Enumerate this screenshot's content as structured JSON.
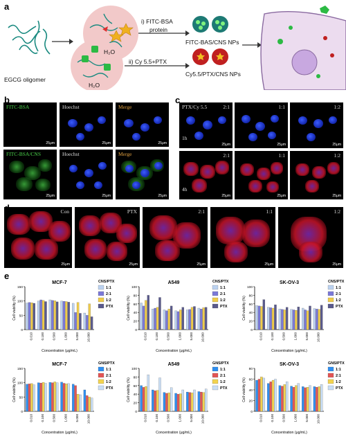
{
  "panels": {
    "a": "a",
    "b": "b",
    "c": "c",
    "d": "d",
    "e": "e"
  },
  "schematic": {
    "egcg": "EGCG oligomer",
    "water1": "H₂O",
    "water2": "H₂O",
    "route1": "i)  FITC-BSA",
    "route1b": "protein",
    "route2": "ii) Cy 5.5+PTX",
    "np1": "FITC-BAS/CNS NPs",
    "np2": "Cy5.5/PTX/CNS NPs"
  },
  "panel_b": {
    "row1": [
      "FITC-BSA",
      "Hoechst",
      "Merge"
    ],
    "row2": [
      "FITC-BSA/CNS",
      "Hoechst",
      "Merge"
    ],
    "scale": "25μm"
  },
  "panel_c": {
    "legend": "PTX/Cy 5.5",
    "cols": [
      "2:1",
      "1:1",
      "1:2"
    ],
    "times": [
      "1h",
      "4h"
    ],
    "scale": "25μm"
  },
  "panel_d": {
    "labels": [
      "Con",
      "PTX",
      "2:1",
      "1:1",
      "1:2"
    ],
    "scale": "25μm"
  },
  "colors": {
    "c1": "#bcd2f0",
    "c2": "#7b79d8",
    "c3": "#f0cc4a",
    "c4": "#5a5a8c",
    "g1": "#2f8ff0",
    "g2": "#e25555",
    "g3": "#f2d34f",
    "g4": "#c9def5"
  },
  "chart_data": [
    {
      "type": "bar",
      "title": "MCF-7",
      "legend_title": "CNS/PTX",
      "xlabel": "Concentration (μg/mL)",
      "ylabel": "Cell viability (%)",
      "ylim": [
        0,
        150
      ],
      "yticks": [
        "0",
        "50",
        "100",
        "150"
      ],
      "categories": [
        "0.010",
        "0.100",
        "0.500",
        "1.000",
        "5.000",
        "10.000"
      ],
      "series": [
        {
          "name": "1:1",
          "values": [
            93,
            100,
            104,
            100,
            92,
            58
          ]
        },
        {
          "name": "2:1",
          "values": [
            95,
            104,
            102,
            99,
            60,
            50
          ]
        },
        {
          "name": "1:2",
          "values": [
            94,
            102,
            101,
            98,
            95,
            90
          ]
        },
        {
          "name": "PTX",
          "values": [
            92,
            98,
            97,
            96,
            57,
            45
          ]
        }
      ]
    },
    {
      "type": "bar",
      "title": "A549",
      "legend_title": "CNS/PTX",
      "xlabel": "Concentration (μg/mL)",
      "ylabel": "Cell viability (%)",
      "ylim": [
        0,
        100
      ],
      "yticks": [
        "0",
        "20",
        "40",
        "60",
        "80",
        "100"
      ],
      "categories": [
        "0.010",
        "0.100",
        "0.500",
        "1.000",
        "5.000",
        "10.000"
      ],
      "series": [
        {
          "name": "1:1",
          "values": [
            62,
            48,
            46,
            44,
            46,
            50
          ]
        },
        {
          "name": "2:1",
          "values": [
            55,
            50,
            44,
            42,
            47,
            48
          ]
        },
        {
          "name": "1:2",
          "values": [
            68,
            52,
            48,
            46,
            52,
            51
          ]
        },
        {
          "name": "PTX",
          "values": [
            80,
            75,
            55,
            52,
            54,
            52
          ]
        }
      ]
    },
    {
      "type": "bar",
      "title": "SK-OV-3",
      "legend_title": "CNS/PTX",
      "xlabel": "Concentration (μg/mL)",
      "ylabel": "Cell viability (%)",
      "ylim": [
        0,
        100
      ],
      "yticks": [
        "0",
        "20",
        "40",
        "60",
        "80",
        "100"
      ],
      "categories": [
        "0.010",
        "0.100",
        "0.500",
        "1.000",
        "5.000",
        "10.000"
      ],
      "series": [
        {
          "name": "1:1",
          "values": [
            56,
            52,
            48,
            47,
            50,
            49
          ]
        },
        {
          "name": "2:1",
          "values": [
            55,
            51,
            47,
            46,
            46,
            48
          ]
        },
        {
          "name": "1:2",
          "values": [
            54,
            50,
            46,
            45,
            44,
            47
          ]
        },
        {
          "name": "PTX",
          "values": [
            70,
            58,
            52,
            53,
            55,
            57
          ]
        }
      ]
    },
    {
      "type": "bar",
      "title": "MCF-7",
      "legend_title": "GNS/PTX",
      "xlabel": "Concentration (μg/mL)",
      "ylabel": "Cell viability (%)",
      "ylim": [
        0,
        150
      ],
      "yticks": [
        "0",
        "50",
        "100",
        "150"
      ],
      "categories": [
        "0.010",
        "0.100",
        "0.500",
        "1.000",
        "5.000",
        "10.000"
      ],
      "series": [
        {
          "name": "1:1",
          "values": [
            95,
            100,
            101,
            102,
            95,
            75
          ]
        },
        {
          "name": "2:1",
          "values": [
            96,
            99,
            100,
            98,
            90,
            55
          ]
        },
        {
          "name": "1:2",
          "values": [
            97,
            101,
            103,
            96,
            60,
            50
          ]
        },
        {
          "name": "PTX",
          "values": [
            93,
            98,
            100,
            97,
            58,
            47
          ]
        }
      ]
    },
    {
      "type": "bar",
      "title": "A549",
      "legend_title": "GNS/PTX",
      "xlabel": "Concentration (μg/mL)",
      "ylabel": "Cell viability (%)",
      "ylim": [
        0,
        100
      ],
      "yticks": [
        "0",
        "20",
        "40",
        "60",
        "80",
        "100"
      ],
      "categories": [
        "0.010",
        "0.100",
        "0.500",
        "1.000",
        "5.000",
        "10.000"
      ],
      "series": [
        {
          "name": "1:1",
          "values": [
            60,
            50,
            44,
            42,
            45,
            46
          ]
        },
        {
          "name": "2:1",
          "values": [
            56,
            48,
            42,
            40,
            44,
            45
          ]
        },
        {
          "name": "1:2",
          "values": [
            58,
            49,
            43,
            41,
            43,
            44
          ]
        },
        {
          "name": "PTX",
          "values": [
            85,
            78,
            55,
            50,
            50,
            52
          ]
        }
      ]
    },
    {
      "type": "bar",
      "title": "SK-OV-3",
      "legend_title": "GNS/PTX",
      "xlabel": "Concentration (μg/mL)",
      "ylabel": "Cell viability (%)",
      "ylim": [
        0,
        80
      ],
      "yticks": [
        "0",
        "20",
        "40",
        "60",
        "80"
      ],
      "categories": [
        "0.010",
        "0.100",
        "0.500",
        "1.000",
        "5.000",
        "10.000"
      ],
      "series": [
        {
          "name": "1:1",
          "values": [
            58,
            52,
            48,
            47,
            46,
            46
          ]
        },
        {
          "name": "2:1",
          "values": [
            60,
            55,
            47,
            45,
            44,
            45
          ]
        },
        {
          "name": "1:2",
          "values": [
            64,
            58,
            50,
            48,
            45,
            46
          ]
        },
        {
          "name": "PTX",
          "values": [
            62,
            60,
            55,
            52,
            48,
            50
          ]
        }
      ]
    }
  ]
}
